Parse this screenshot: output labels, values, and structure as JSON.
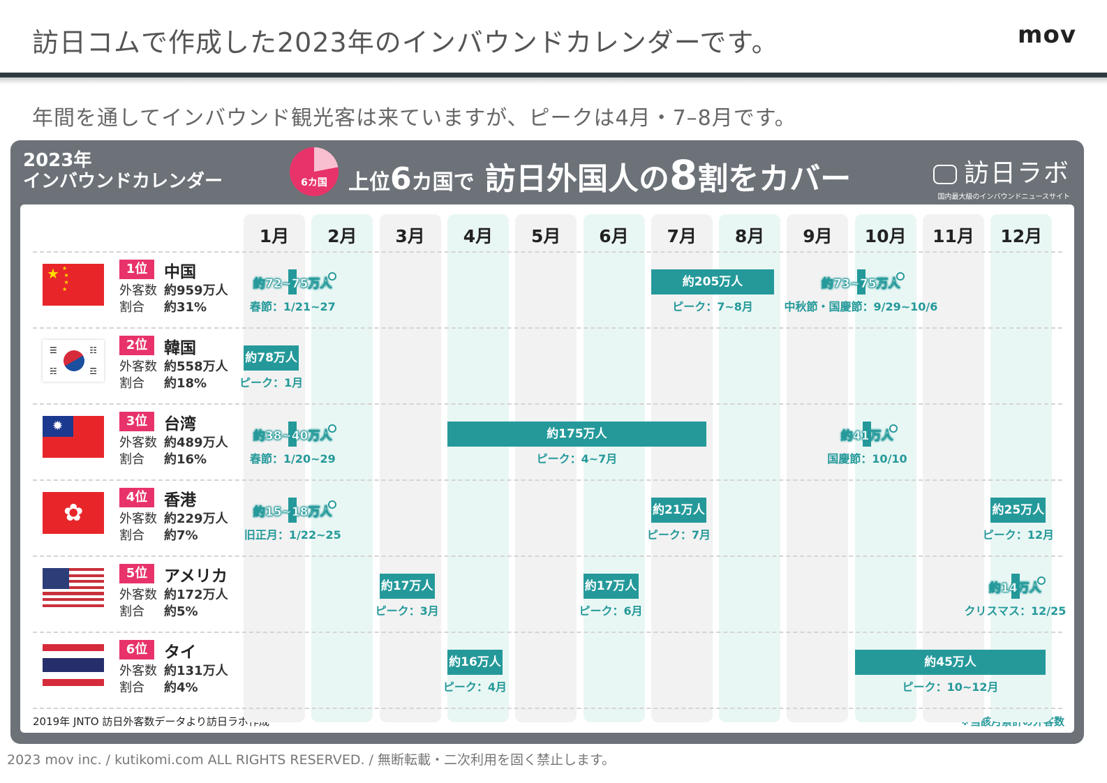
{
  "slide": {
    "title": "訪日コムで作成した2023年のインバウンドカレンダーです。",
    "brand": "mov",
    "subtitle": "年間を通してインバウンド観光客は来ていますが、ピークは4月・7–8月です。",
    "footer": "2023 mov inc. / kutikomi.com ALL RIGHTS RESERVED. / 無断転載・二次利用を固く禁止します。"
  },
  "calendar": {
    "title_line1": "2023年",
    "title_line2": "インバウンドカレンダー",
    "pie_label": "6カ国",
    "headline_a": "上位",
    "headline_b": "6",
    "headline_c": "カ国で",
    "headline_d": "訪日外国人の",
    "headline_e": "8",
    "headline_f": "割をカバー",
    "logo_main": "訪日ラボ",
    "logo_sub": "国内最大級のインバウンドニュースサイト",
    "months": [
      "1月",
      "2月",
      "3月",
      "4月",
      "5月",
      "6月",
      "7月",
      "8月",
      "9月",
      "10月",
      "11月",
      "12月"
    ],
    "source": "2019年 JNTO 訪日外客数データより訪日ラボ作成",
    "note": "※当該月累計の外客数",
    "stat_labels": {
      "visitors": "外客数",
      "share": "割合"
    },
    "countries": [
      {
        "rank": "1位",
        "name": "中国",
        "visitors": "約959万人",
        "share": "約31%",
        "bars": [
          {
            "label": "約205万人",
            "caption": "ピーク：7~8月"
          }
        ],
        "pins": [
          {
            "label": "約72~75万人",
            "caption": "春節：1/21~27"
          },
          {
            "label": "約73~75万人",
            "caption": "中秋節・国慶節：9/29~10/6"
          }
        ]
      },
      {
        "rank": "2位",
        "name": "韓国",
        "visitors": "約558万人",
        "share": "約18%",
        "bars": [
          {
            "label": "約78万人",
            "caption": "ピーク：1月"
          }
        ],
        "pins": []
      },
      {
        "rank": "3位",
        "name": "台湾",
        "visitors": "約489万人",
        "share": "約16%",
        "bars": [
          {
            "label": "約175万人",
            "caption": "ピーク：4~7月"
          }
        ],
        "pins": [
          {
            "label": "約38~40万人",
            "caption": "春節：1/20~29"
          },
          {
            "label": "約41万人",
            "caption": "国慶節：10/10"
          }
        ]
      },
      {
        "rank": "4位",
        "name": "香港",
        "visitors": "約229万人",
        "share": "約7%",
        "bars": [
          {
            "label": "約21万人",
            "caption": "ピーク：7月"
          },
          {
            "label": "約25万人",
            "caption": "ピーク：12月"
          }
        ],
        "pins": [
          {
            "label": "約15~18万人",
            "caption": "旧正月：1/22~25"
          }
        ]
      },
      {
        "rank": "5位",
        "name": "アメリカ",
        "visitors": "約172万人",
        "share": "約5%",
        "bars": [
          {
            "label": "約17万人",
            "caption": "ピーク：3月"
          },
          {
            "label": "約17万人",
            "caption": "ピーク：6月"
          }
        ],
        "pins": [
          {
            "label": "約14万人",
            "caption": "クリスマス：12/25"
          }
        ]
      },
      {
        "rank": "6位",
        "name": "タイ",
        "visitors": "約131万人",
        "share": "約4%",
        "bars": [
          {
            "label": "約16万人",
            "caption": "ピーク：4月"
          },
          {
            "label": "約45万人",
            "caption": "ピーク：10~12月"
          }
        ],
        "pins": []
      }
    ]
  },
  "colors": {
    "accent": "#25999a",
    "rank": "#e8336a",
    "panel": "#6c7278"
  }
}
